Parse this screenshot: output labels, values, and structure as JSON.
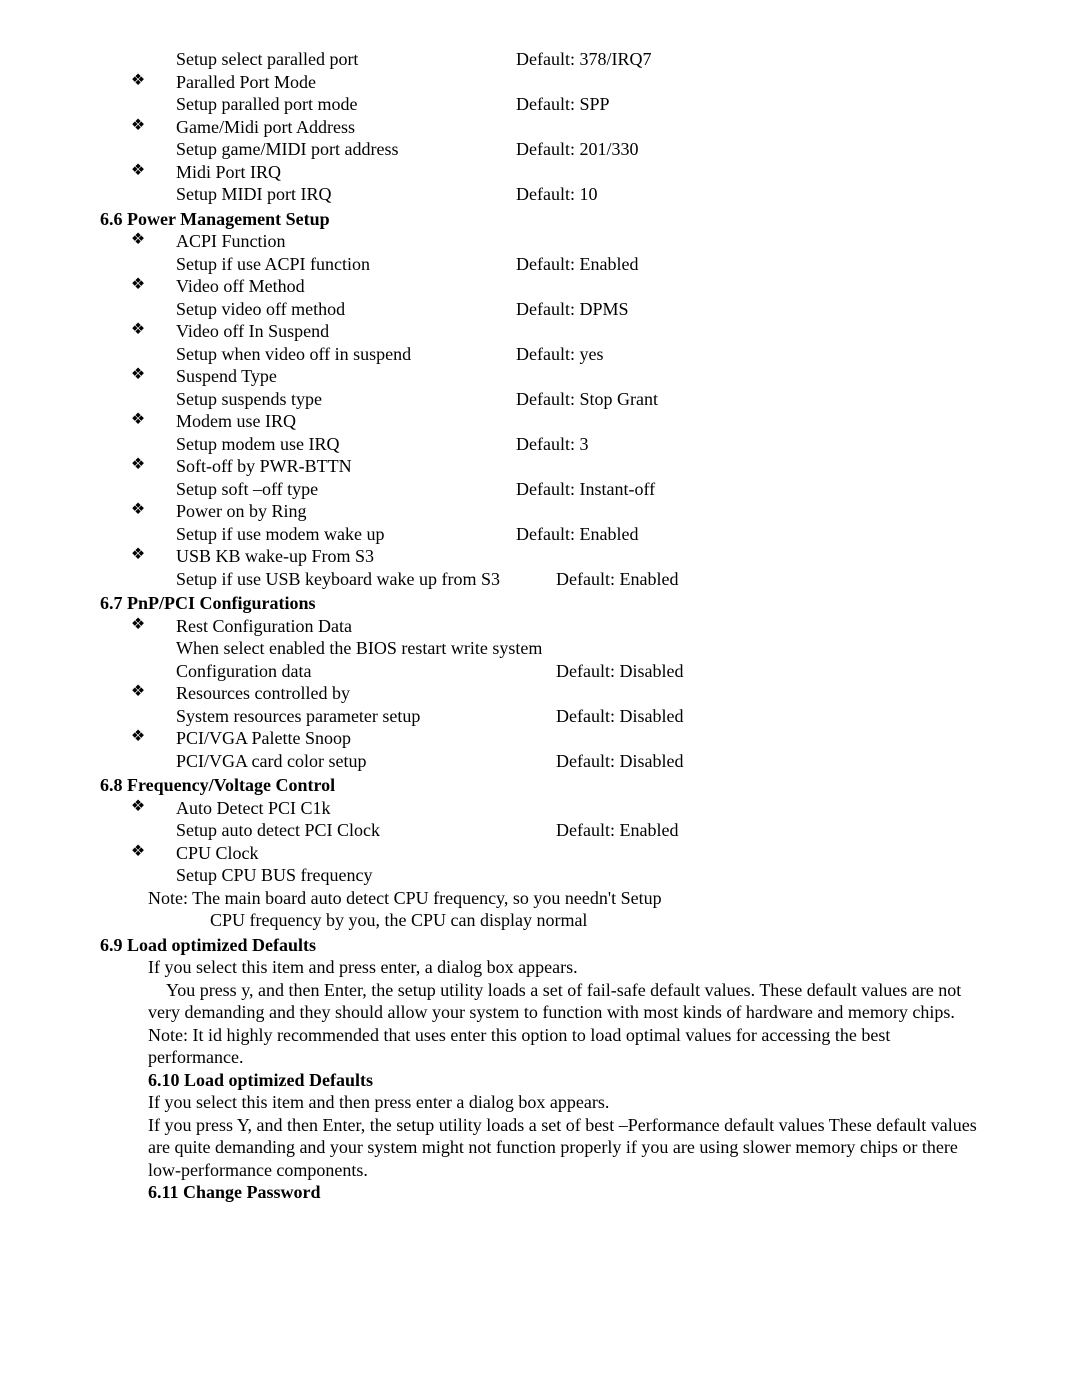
{
  "bullet_glyph": "❖",
  "pre_items": [
    {
      "title": "",
      "desc": "Setup select paralled port",
      "default": "Default: 378/IRQ7"
    },
    {
      "title": "Paralled Port Mode",
      "desc": "Setup paralled port mode",
      "default": "Default: SPP"
    },
    {
      "title": "Game/Midi port Address",
      "desc": "Setup game/MIDI port address",
      "default": "Default: 201/330"
    },
    {
      "title": "Midi Port IRQ",
      "desc": "Setup MIDI port IRQ",
      "default": "Default: 10"
    }
  ],
  "sec66": {
    "heading": "6.6 Power Management Setup",
    "items": [
      {
        "title": "ACPI Function",
        "desc": "Setup if use ACPI function",
        "default": "Default: Enabled"
      },
      {
        "title": "Video off Method",
        "desc": "Setup video off method",
        "default": "Default: DPMS"
      },
      {
        "title": "Video off In Suspend",
        "desc": "Setup when video off in suspend",
        "default": "Default: yes"
      },
      {
        "title": "Suspend Type",
        "desc": "Setup suspends type",
        "default": "Default: Stop Grant"
      },
      {
        "title": "Modem use IRQ",
        "desc": "Setup modem use IRQ",
        "default": "Default: 3"
      },
      {
        "title": "Soft-off by PWR-BTTN",
        "desc": "Setup soft –off type",
        "default": "Default: Instant-off"
      },
      {
        "title": "Power on by Ring",
        "desc": "Setup if use modem wake up",
        "default": "Default: Enabled"
      },
      {
        "title": "USB KB wake-up From S3",
        "desc": "Setup if use USB keyboard wake up from S3",
        "default": "Default: Enabled",
        "wide": true
      }
    ]
  },
  "sec67": {
    "heading": "6.7 PnP/PCI Configurations",
    "items": [
      {
        "title": "Rest Configuration Data",
        "desc_lines": [
          "When select enabled the BIOS restart write system",
          "Configuration data"
        ],
        "default": "Default: Disabled"
      },
      {
        "title": "Resources controlled by",
        "desc": "System resources parameter setup",
        "default": "Default: Disabled"
      },
      {
        "title": "PCI/VGA Palette Snoop",
        "desc": "PCI/VGA card color setup",
        "default": "Default: Disabled"
      }
    ]
  },
  "sec68": {
    "heading": "6.8 Frequency/Voltage Control",
    "items": [
      {
        "title": "Auto Detect PCI C1k",
        "desc": "Setup auto detect PCI Clock",
        "default": "Default: Enabled"
      },
      {
        "title": "CPU Clock",
        "desc": "Setup CPU BUS frequency",
        "default": ""
      }
    ],
    "note_line1": "Note: The main board auto detect CPU frequency, so you needn't Setup",
    "note_line2": "CPU frequency by you, the CPU can display normal"
  },
  "sec69": {
    "heading": "6.9 Load optimized Defaults",
    "line1": "If you select this item and press enter, a dialog box appears.",
    "para1": "    You press y, and then Enter, the setup utility loads a set of fail-safe default values. These default values are not very demanding and they should allow your system to function with most kinds of hardware and memory chips.",
    "note": "Note: It id highly recommended that uses enter this option to load optimal values for accessing the best performance."
  },
  "sec610": {
    "heading": "6.10  Load optimized Defaults",
    "line1": "If you select this item and then press enter a dialog box appears.",
    "para1": "If you press Y, and then Enter, the setup utility loads a set of best –Performance default values These default values are quite demanding and your system might not function properly if you are using slower memory chips or there low-performance components."
  },
  "sec611_heading": "6.11  Change Password"
}
